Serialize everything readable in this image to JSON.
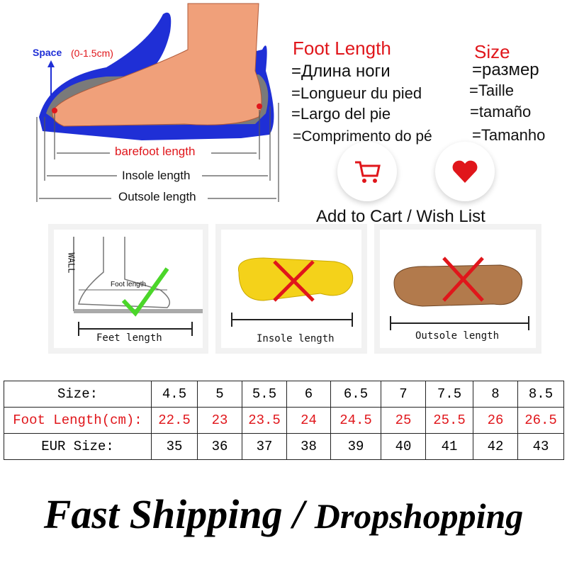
{
  "diagram": {
    "space_label": "Space",
    "space_range": "(0-1.5cm)",
    "barefoot_length": "barefoot length",
    "insole_length": "Insole length",
    "outsole_length": "Outsole length"
  },
  "foot_length": {
    "title": "Foot Length",
    "translations": [
      "=Длина ноги",
      "=Longueur du pied",
      "=Largo del pie",
      "=Comprimento do pé"
    ]
  },
  "size": {
    "title": "Size",
    "translations": [
      "=размер",
      "=Taille",
      "=tamaño",
      "=Tamanho"
    ]
  },
  "actions": {
    "cart_icon": "shopping-cart-icon",
    "wish_icon": "heart-icon",
    "caption": "Add to Cart / Wish List"
  },
  "panels": {
    "wall": "WALL",
    "foot_length_small": "Foot length",
    "feet_length": "Feet length",
    "insole_length": "Insole length",
    "outsole_length": "Outsole length"
  },
  "size_table": {
    "row_labels": [
      "Size:",
      "Foot Length(cm):",
      "EUR Size:"
    ],
    "us_sizes": [
      "4.5",
      "5",
      "5.5",
      "6",
      "6.5",
      "7",
      "7.5",
      "8",
      "8.5"
    ],
    "foot_length_cm": [
      "22.5",
      "23",
      "23.5",
      "24",
      "24.5",
      "25",
      "25.5",
      "26",
      "26.5"
    ],
    "eur_sizes": [
      "35",
      "36",
      "37",
      "38",
      "39",
      "40",
      "41",
      "42",
      "43"
    ]
  },
  "footer": {
    "part1": "Fast Shipping",
    "separator": "/",
    "part2": "Dropshopping"
  },
  "colors": {
    "red": "#e0161b",
    "blue": "#1f2fd6",
    "skin": "#f0a07a"
  }
}
